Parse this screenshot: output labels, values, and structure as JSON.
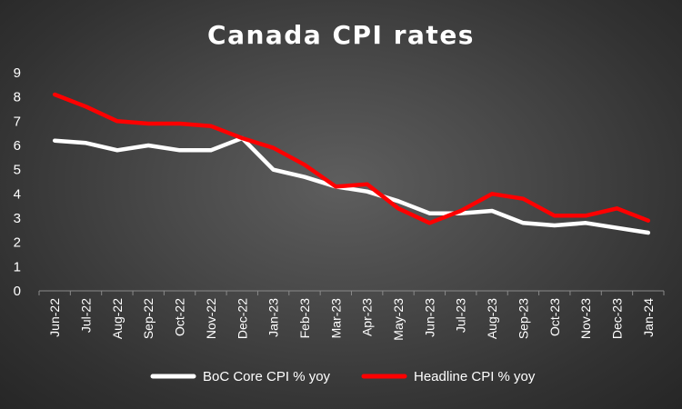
{
  "chart_data": {
    "type": "line",
    "title": "Canada CPI rates",
    "xlabel": "",
    "ylabel": "",
    "ylim": [
      0,
      9
    ],
    "yticks": [
      0,
      1,
      2,
      3,
      4,
      5,
      6,
      7,
      8,
      9
    ],
    "grid": false,
    "legend_position": "bottom",
    "categories": [
      "Jun-22",
      "Jul-22",
      "Aug-22",
      "Sep-22",
      "Oct-22",
      "Nov-22",
      "Dec-22",
      "Jan-23",
      "Feb-23",
      "Mar-23",
      "Apr-23",
      "May-23",
      "Jun-23",
      "Jul-23",
      "Aug-23",
      "Sep-23",
      "Oct-23",
      "Nov-23",
      "Dec-23",
      "Jan-24"
    ],
    "series": [
      {
        "name": "BoC Core CPI % yoy",
        "color": "#ffffff",
        "values": [
          6.2,
          6.1,
          5.8,
          6.0,
          5.8,
          5.8,
          6.3,
          5.0,
          4.7,
          4.3,
          4.1,
          3.7,
          3.2,
          3.2,
          3.3,
          2.8,
          2.7,
          2.8,
          2.6,
          2.4
        ]
      },
      {
        "name": "Headline CPI % yoy",
        "color": "#ff0000",
        "values": [
          8.1,
          7.6,
          7.0,
          6.9,
          6.9,
          6.8,
          6.3,
          5.9,
          5.2,
          4.3,
          4.4,
          3.4,
          2.8,
          3.3,
          4.0,
          3.8,
          3.1,
          3.1,
          3.4,
          2.9
        ]
      }
    ]
  }
}
